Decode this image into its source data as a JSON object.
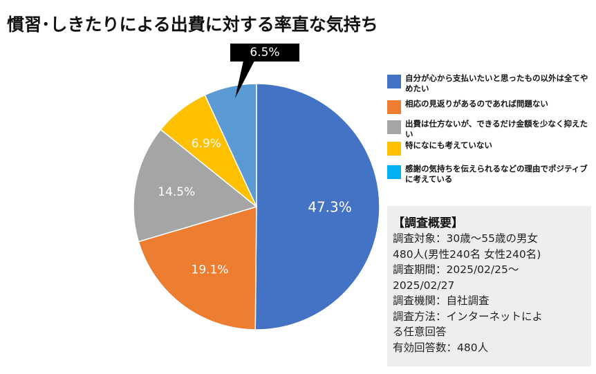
{
  "title": "慣習･しきたりによる出費に対する率直な気持ち",
  "chart_data": {
    "type": "pie",
    "title": "慣習･しきたりによる出費に対する率直な気持ち",
    "start_angle_deg": 0,
    "direction": "clockwise",
    "slices": [
      {
        "label": "自分が心から支払いたいと思ったもの以外は全てやめたい",
        "value": 47.3,
        "display": "47.3%",
        "color": "#4472C4",
        "text_color": "#ffffff"
      },
      {
        "label": "相応の見返りがあるのであれば問題ない",
        "value": 19.1,
        "display": "19.1%",
        "color": "#ED7D31",
        "text_color": "#ffffff"
      },
      {
        "label": "出費は仕方ないが、できるだけ金額を少なく抑えたい",
        "value": 14.5,
        "display": "14.5%",
        "color": "#A5A5A5",
        "text_color": "#ffffff"
      },
      {
        "label": "特になにも考えていない",
        "value": 6.9,
        "display": "6.9%",
        "color": "#FFC000",
        "text_color": "#ffffff"
      },
      {
        "label": "感謝の気持ちを伝えられるなどの理由でポジティブに考えている",
        "value": 6.5,
        "display": "6.5%",
        "color": "#5B9BD5",
        "text_color": "#ffffff"
      }
    ],
    "legend_position": "right",
    "legend_colors": [
      "#4472C4",
      "#ED7D31",
      "#A5A5A5",
      "#FFC000",
      "#00B0F0"
    ]
  },
  "summary": {
    "heading": "【調査概要】",
    "lines": [
      "調査対象：30歳～55歳の男女",
      "480人(男性240名 女性240名)",
      "調査期間：2025/02/25～",
      "2025/02/27",
      "調査機関：自社調査",
      "調査方法：インターネットによ",
      "る任意回答",
      "有効回答数：480人"
    ]
  }
}
